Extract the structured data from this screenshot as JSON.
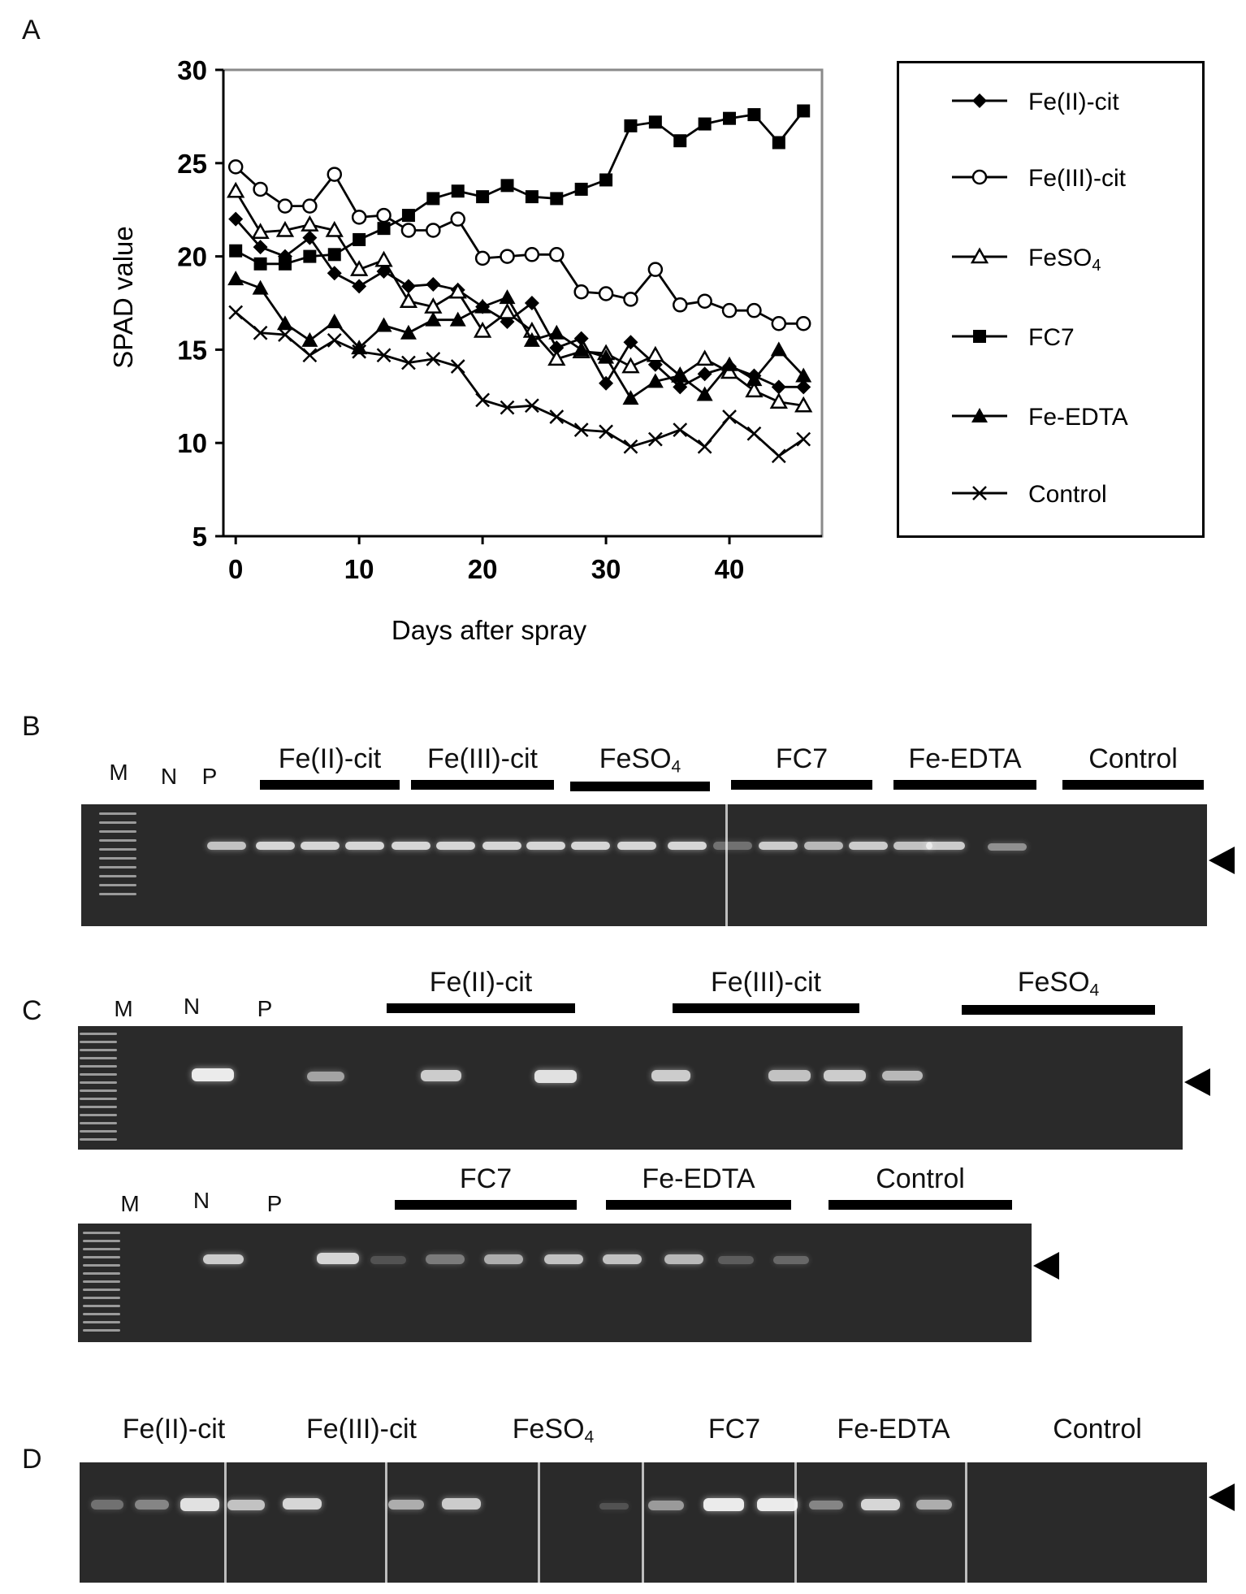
{
  "panels": {
    "a": "A",
    "b": "B",
    "c": "C",
    "d": "D"
  },
  "chart_data": {
    "type": "line",
    "xlabel": "Days after spray",
    "ylabel": "SPAD value",
    "xlim": [
      -1,
      47.5
    ],
    "ylim": [
      5,
      30
    ],
    "xticks": [
      0,
      10,
      20,
      30,
      40
    ],
    "yticks": [
      5,
      10,
      15,
      20,
      25,
      30
    ],
    "grid": false,
    "legend_position": "right",
    "x": [
      0,
      2,
      4,
      6,
      8,
      10,
      12,
      14,
      16,
      18,
      20,
      22,
      24,
      26,
      28,
      30,
      32,
      34,
      36,
      38,
      40,
      42,
      44,
      46
    ],
    "series": [
      {
        "name": "Fe(II)-cit",
        "marker": "diamond",
        "values": [
          22.0,
          20.5,
          20.0,
          21.0,
          19.1,
          18.4,
          19.2,
          18.4,
          18.5,
          18.2,
          17.3,
          16.5,
          17.5,
          15.1,
          15.6,
          13.2,
          15.4,
          14.2,
          13.0,
          13.7,
          14.1,
          13.6,
          13.0,
          13.0
        ]
      },
      {
        "name": "Fe(III)-cit",
        "marker": "circle-open",
        "values": [
          24.8,
          23.6,
          22.7,
          22.7,
          24.4,
          22.1,
          22.2,
          21.4,
          21.4,
          22.0,
          19.9,
          20.0,
          20.1,
          20.1,
          18.1,
          18.0,
          17.7,
          19.3,
          17.4,
          17.6,
          17.1,
          17.1,
          16.4,
          16.4
        ]
      },
      {
        "name": "FeSO₄",
        "marker": "triangle-open",
        "values": [
          23.5,
          21.3,
          21.4,
          21.7,
          21.4,
          19.3,
          19.8,
          17.6,
          17.3,
          18.1,
          16.0,
          17.0,
          16.0,
          14.5,
          14.9,
          14.8,
          14.1,
          14.7,
          13.6,
          14.5,
          13.8,
          12.8,
          12.2,
          12.0
        ]
      },
      {
        "name": "FC7",
        "marker": "square",
        "values": [
          20.3,
          19.6,
          19.6,
          20.0,
          20.1,
          20.9,
          21.5,
          22.2,
          23.1,
          23.5,
          23.2,
          23.8,
          23.2,
          23.1,
          23.6,
          24.1,
          27.0,
          27.2,
          26.2,
          27.1,
          27.4,
          27.6,
          26.1,
          27.8
        ]
      },
      {
        "name": "Fe-EDTA",
        "marker": "triangle",
        "values": [
          18.8,
          18.3,
          16.4,
          15.5,
          16.5,
          15.1,
          16.3,
          15.9,
          16.6,
          16.6,
          17.3,
          17.8,
          15.5,
          15.9,
          15.0,
          14.6,
          12.4,
          13.3,
          13.6,
          12.6,
          14.2,
          13.4,
          15.0,
          13.6
        ]
      },
      {
        "name": "Control",
        "marker": "x",
        "values": [
          17.0,
          15.9,
          15.8,
          14.7,
          15.5,
          14.9,
          14.7,
          14.3,
          14.5,
          14.1,
          12.3,
          11.9,
          12.0,
          11.4,
          10.7,
          10.6,
          9.8,
          10.2,
          10.7,
          9.8,
          11.4,
          10.5,
          9.3,
          10.2
        ]
      }
    ]
  },
  "gel_b": {
    "lanes": {
      "m": "M",
      "n": "N",
      "p": "P"
    },
    "groups": [
      "Fe(II)-cit",
      "Fe(III)-cit",
      "FeSO4",
      "FC7",
      "Fe-EDTA",
      "Control"
    ]
  },
  "gel_c": {
    "top": {
      "lanes": {
        "m": "M",
        "n": "N",
        "p": "P"
      },
      "groups": [
        "Fe(II)-cit",
        "Fe(III)-cit",
        "FeSO4"
      ]
    },
    "bottom": {
      "lanes": {
        "m": "M",
        "n": "N",
        "p": "P"
      },
      "groups": [
        "FC7",
        "Fe-EDTA",
        "Control"
      ]
    }
  },
  "gel_d": {
    "groups": [
      "Fe(II)-cit",
      "Fe(III)-cit",
      "FeSO4",
      "FC7",
      "Fe-EDTA",
      "Control"
    ]
  }
}
